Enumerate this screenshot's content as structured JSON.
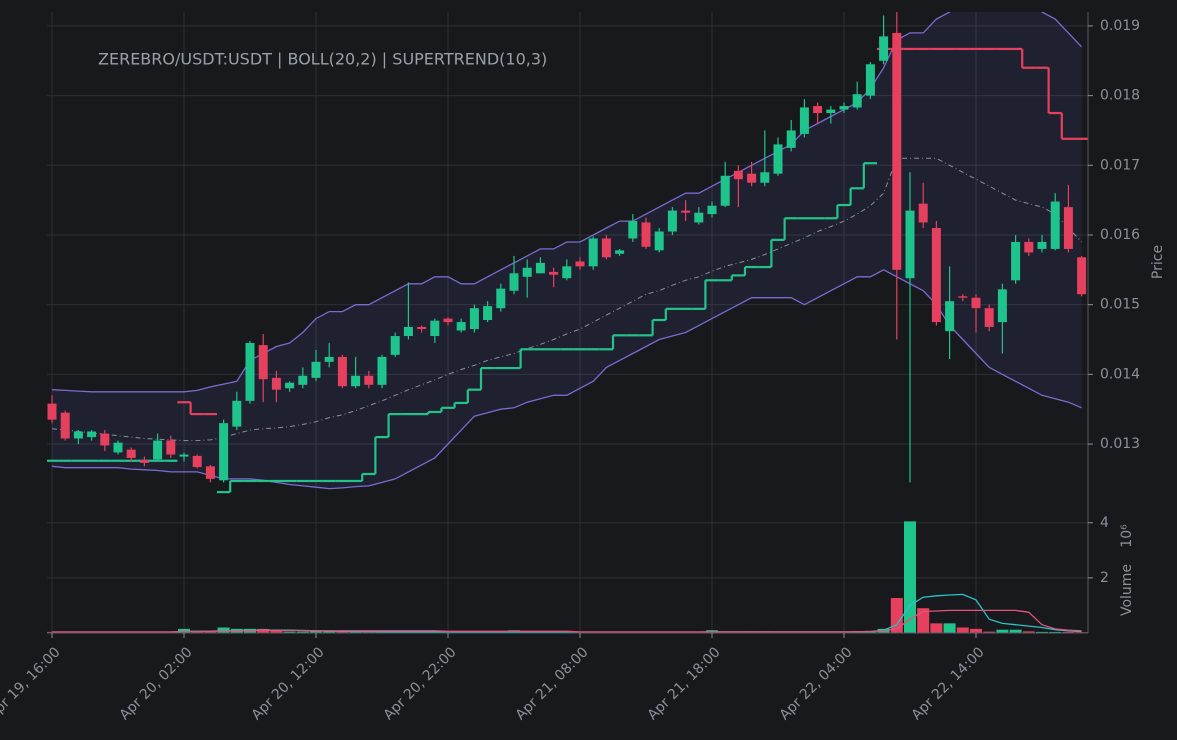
{
  "chart_data": [
    {
      "type": "candlestick",
      "title": "ZEREBRO/USDT:USDT | BOLL(20,2) | SUPERTREND(10,3)",
      "ylabel": "Price",
      "categories": [
        "Apr 19, 16:00",
        null,
        null,
        null,
        null,
        null,
        null,
        null,
        null,
        null,
        "Apr 20, 02:00",
        null,
        null,
        null,
        null,
        null,
        null,
        null,
        null,
        null,
        "Apr 20, 12:00",
        null,
        null,
        null,
        null,
        null,
        null,
        null,
        null,
        null,
        "Apr 20, 22:00",
        null,
        null,
        null,
        null,
        null,
        null,
        null,
        null,
        null,
        "Apr 21, 08:00",
        null,
        null,
        null,
        null,
        null,
        null,
        null,
        null,
        null,
        "Apr 21, 18:00",
        null,
        null,
        null,
        null,
        null,
        null,
        null,
        null,
        null,
        "Apr 22, 04:00",
        null,
        null,
        null,
        null,
        null,
        null,
        null,
        null,
        null,
        "Apr 22, 14:00",
        null,
        null,
        null,
        null,
        null,
        null,
        null,
        null
      ],
      "open": [
        0.01358,
        0.01345,
        0.01308,
        0.0131,
        0.01315,
        0.01288,
        0.01292,
        0.01277,
        0.01278,
        0.01305,
        0.01282,
        0.01283,
        0.01268,
        0.01248,
        0.01325,
        0.01362,
        0.01442,
        0.01395,
        0.0138,
        0.01385,
        0.01395,
        0.01418,
        0.01425,
        0.01383,
        0.01398,
        0.01385,
        0.01428,
        0.01455,
        0.01468,
        0.01455,
        0.0148,
        0.01463,
        0.01465,
        0.01478,
        0.01495,
        0.0152,
        0.0154,
        0.01545,
        0.01547,
        0.01538,
        0.01562,
        0.01555,
        0.01595,
        0.01573,
        0.01595,
        0.01618,
        0.01578,
        0.01605,
        0.01635,
        0.01618,
        0.0163,
        0.01642,
        0.01692,
        0.01688,
        0.01675,
        0.01688,
        0.01725,
        0.01745,
        0.01785,
        0.01775,
        0.0178,
        0.01783,
        0.018,
        0.0185,
        0.0189,
        0.01538,
        0.01645,
        0.0161,
        0.01462,
        0.01512,
        0.0151,
        0.01495,
        0.01475,
        0.01535,
        0.0159,
        0.0158,
        0.0158,
        0.0164,
        0.01568
      ],
      "high": [
        0.0137,
        0.01348,
        0.0132,
        0.0132,
        0.0132,
        0.01305,
        0.01295,
        0.01282,
        0.01315,
        0.01312,
        0.01288,
        0.01285,
        0.0127,
        0.01335,
        0.01375,
        0.01448,
        0.01458,
        0.01405,
        0.0139,
        0.0141,
        0.01435,
        0.01445,
        0.01428,
        0.01425,
        0.01405,
        0.01428,
        0.0146,
        0.01532,
        0.0147,
        0.0148,
        0.01482,
        0.0148,
        0.015,
        0.01505,
        0.0153,
        0.0157,
        0.01565,
        0.01568,
        0.01553,
        0.01565,
        0.01568,
        0.01598,
        0.016,
        0.0158,
        0.0163,
        0.01625,
        0.0161,
        0.0164,
        0.0165,
        0.0164,
        0.01648,
        0.01705,
        0.017,
        0.01705,
        0.0175,
        0.0174,
        0.01765,
        0.01795,
        0.0179,
        0.01785,
        0.0179,
        0.0182,
        0.01848,
        0.01915,
        0.0192,
        0.0169,
        0.01675,
        0.0162,
        0.01555,
        0.01515,
        0.01515,
        0.015,
        0.0153,
        0.016,
        0.01595,
        0.016,
        0.0166,
        0.01672,
        0.0157
      ],
      "low": [
        0.0133,
        0.01305,
        0.013,
        0.01305,
        0.0129,
        0.01285,
        0.01275,
        0.01268,
        0.01275,
        0.0128,
        0.01275,
        0.01265,
        0.01245,
        0.01245,
        0.0132,
        0.01358,
        0.0136,
        0.0136,
        0.01375,
        0.0138,
        0.0139,
        0.0141,
        0.0138,
        0.0138,
        0.0138,
        0.0138,
        0.01425,
        0.0145,
        0.0146,
        0.01445,
        0.0147,
        0.0146,
        0.0146,
        0.01475,
        0.0149,
        0.01515,
        0.0151,
        0.01545,
        0.01525,
        0.01535,
        0.0155,
        0.0155,
        0.01565,
        0.0157,
        0.0159,
        0.0158,
        0.01575,
        0.016,
        0.0162,
        0.01615,
        0.01625,
        0.0164,
        0.0164,
        0.0167,
        0.0167,
        0.01685,
        0.0172,
        0.0174,
        0.0176,
        0.0176,
        0.01775,
        0.0178,
        0.01795,
        0.01845,
        0.0145,
        0.01245,
        0.0161,
        0.0147,
        0.01422,
        0.01505,
        0.0146,
        0.01462,
        0.0143,
        0.0153,
        0.0157,
        0.01575,
        0.01578,
        0.01575,
        0.01512
      ],
      "close": [
        0.01335,
        0.01308,
        0.01318,
        0.01318,
        0.01298,
        0.01302,
        0.0128,
        0.01273,
        0.01305,
        0.01285,
        0.01285,
        0.01267,
        0.0125,
        0.0133,
        0.01362,
        0.01445,
        0.01393,
        0.01378,
        0.01388,
        0.01398,
        0.01418,
        0.01425,
        0.01383,
        0.01398,
        0.01385,
        0.01425,
        0.01455,
        0.01468,
        0.01465,
        0.01477,
        0.01475,
        0.01475,
        0.01495,
        0.01498,
        0.01523,
        0.01545,
        0.01553,
        0.0156,
        0.01543,
        0.01555,
        0.01555,
        0.01595,
        0.01568,
        0.01578,
        0.0162,
        0.01583,
        0.01605,
        0.01635,
        0.01632,
        0.01632,
        0.01642,
        0.01685,
        0.0168,
        0.01675,
        0.0169,
        0.0173,
        0.0175,
        0.01783,
        0.01775,
        0.0178,
        0.01785,
        0.01802,
        0.01845,
        0.01885,
        0.0155,
        0.01635,
        0.01618,
        0.01475,
        0.01505,
        0.0151,
        0.01495,
        0.01468,
        0.01522,
        0.0159,
        0.01575,
        0.0159,
        0.01648,
        0.0158,
        0.01515
      ],
      "up_color": "#1fc48d",
      "down_color": "#e5405e",
      "band_fill": "rgba(120,105,220,0.10)",
      "series": [
        {
          "style": "line",
          "color": "#7a6bd0",
          "values": [
            0.01378,
            0.01377,
            0.01376,
            0.01375,
            0.01375,
            0.01375,
            0.01375,
            0.01375,
            0.01375,
            0.01375,
            0.01375,
            0.01377,
            0.01382,
            0.01386,
            0.0139,
            0.0142,
            0.0143,
            0.0144,
            0.01445,
            0.0146,
            0.0148,
            0.0149,
            0.0149,
            0.015,
            0.015,
            0.0151,
            0.0152,
            0.0153,
            0.0153,
            0.0154,
            0.0154,
            0.0153,
            0.0153,
            0.0154,
            0.0155,
            0.0156,
            0.0157,
            0.0158,
            0.0158,
            0.0159,
            0.0159,
            0.016,
            0.0161,
            0.0162,
            0.0162,
            0.0163,
            0.0164,
            0.0165,
            0.0166,
            0.0166,
            0.0167,
            0.0168,
            0.0169,
            0.017,
            0.0171,
            0.0172,
            0.0173,
            0.0175,
            0.0176,
            0.0177,
            0.0178,
            0.0179,
            0.0181,
            0.0184,
            0.0188,
            0.0189,
            0.0189,
            0.0191,
            0.0192,
            0.0193,
            0.0193,
            0.0193,
            0.0193,
            0.0193,
            0.0193,
            0.0192,
            0.0191,
            0.0189,
            0.0187
          ]
        },
        {
          "style": "dashed",
          "color": "#8a8f99",
          "values": [
            0.01322,
            0.0132,
            0.01318,
            0.01316,
            0.01314,
            0.01312,
            0.0131,
            0.01308,
            0.01307,
            0.01306,
            0.01305,
            0.01305,
            0.01306,
            0.0131,
            0.01315,
            0.0132,
            0.01322,
            0.01323,
            0.01325,
            0.01328,
            0.01332,
            0.01338,
            0.01342,
            0.01348,
            0.01355,
            0.01362,
            0.0137,
            0.01378,
            0.01385,
            0.01392,
            0.014,
            0.01407,
            0.01413,
            0.0142,
            0.01425,
            0.0143,
            0.01437,
            0.01443,
            0.0145,
            0.01458,
            0.01465,
            0.01475,
            0.01485,
            0.01495,
            0.01505,
            0.01515,
            0.0152,
            0.01528,
            0.01535,
            0.0154,
            0.01548,
            0.01555,
            0.0156,
            0.01565,
            0.01572,
            0.0158,
            0.01588,
            0.01596,
            0.01605,
            0.01612,
            0.0162,
            0.0163,
            0.01642,
            0.0166,
            0.0171,
            0.0171,
            0.0171,
            0.0171,
            0.017,
            0.0169,
            0.0168,
            0.0167,
            0.0166,
            0.0165,
            0.01645,
            0.0164,
            0.0163,
            0.0161,
            0.0159
          ]
        },
        {
          "style": "line",
          "color": "#7a6bd0",
          "values": [
            0.01268,
            0.01266,
            0.01266,
            0.01266,
            0.01266,
            0.01266,
            0.01264,
            0.01263,
            0.01262,
            0.0126,
            0.0126,
            0.0126,
            0.01255,
            0.0125,
            0.0125,
            0.0125,
            0.01248,
            0.01245,
            0.01242,
            0.0124,
            0.01238,
            0.01236,
            0.01237,
            0.01239,
            0.0124,
            0.01245,
            0.0125,
            0.0126,
            0.0127,
            0.0128,
            0.013,
            0.0132,
            0.0134,
            0.01345,
            0.0135,
            0.01352,
            0.0136,
            0.01365,
            0.0137,
            0.0137,
            0.0138,
            0.0139,
            0.0141,
            0.0142,
            0.0143,
            0.0144,
            0.0145,
            0.01455,
            0.0146,
            0.0147,
            0.0148,
            0.0149,
            0.015,
            0.0151,
            0.0151,
            0.0151,
            0.0151,
            0.015,
            0.0151,
            0.0152,
            0.0153,
            0.0154,
            0.0154,
            0.0155,
            0.0154,
            0.0153,
            0.0152,
            0.015,
            0.0147,
            0.0145,
            0.0143,
            0.0141,
            0.014,
            0.0139,
            0.0138,
            0.0137,
            0.01365,
            0.0136,
            0.01352
          ]
        },
        {
          "style": "step",
          "color": "#22c48a",
          "values": [
            0.01276,
            0.01276,
            0.01276,
            0.01276,
            0.01276,
            0.01276,
            0.01276,
            0.01276,
            0.01276,
            0.01276,
            null,
            null,
            null,
            0.01231,
            0.01247,
            0.01247,
            0.01247,
            0.01247,
            0.01247,
            0.01247,
            0.01247,
            0.01247,
            0.01247,
            0.01247,
            0.01257,
            0.0131,
            0.01343,
            0.01343,
            0.01343,
            0.01346,
            0.01352,
            0.01359,
            0.01378,
            0.01409,
            0.01409,
            0.01409,
            0.01436,
            0.01436,
            0.01436,
            0.01436,
            0.01436,
            0.01436,
            0.01436,
            0.01456,
            0.01456,
            0.01456,
            0.01478,
            0.01494,
            0.01494,
            0.01494,
            0.01535,
            0.01535,
            0.01542,
            0.01554,
            0.01554,
            0.01593,
            0.01624,
            0.01624,
            0.01624,
            0.01624,
            0.01643,
            0.01667,
            0.01703,
            null,
            null,
            null,
            null,
            null,
            null,
            null,
            null,
            null,
            null,
            null,
            null,
            null,
            null,
            null,
            null
          ]
        },
        {
          "style": "step",
          "color": "#e5405e",
          "values": [
            null,
            null,
            null,
            null,
            null,
            null,
            null,
            null,
            null,
            null,
            0.0136,
            0.01343,
            0.01343,
            null,
            null,
            null,
            null,
            null,
            null,
            null,
            null,
            null,
            null,
            null,
            null,
            null,
            null,
            null,
            null,
            null,
            null,
            null,
            null,
            null,
            null,
            null,
            null,
            null,
            null,
            null,
            null,
            null,
            null,
            null,
            null,
            null,
            null,
            null,
            null,
            null,
            null,
            null,
            null,
            null,
            null,
            null,
            null,
            null,
            null,
            null,
            null,
            null,
            null,
            0.01867,
            0.01867,
            0.01867,
            0.01867,
            0.01867,
            0.01867,
            0.01867,
            0.01867,
            0.01867,
            0.01867,
            0.01867,
            0.0184,
            0.0184,
            0.01775,
            0.01738,
            0.01738
          ]
        }
      ],
      "ylim": [
        0.01191,
        0.0192
      ],
      "yticks": [
        0.013,
        0.014,
        0.015,
        0.016,
        0.017,
        0.018,
        0.019
      ],
      "grid": true
    },
    {
      "type": "bar",
      "ylabel": "Volume",
      "scale_label": "10⁶",
      "values": [
        0.04,
        0.03,
        0.02,
        0.02,
        0.02,
        0.02,
        0.02,
        0.02,
        0.03,
        0.02,
        0.15,
        0.05,
        0.04,
        0.2,
        0.15,
        0.15,
        0.15,
        0.1,
        0.05,
        0.05,
        0.08,
        0.08,
        0.08,
        0.06,
        0.04,
        0.04,
        0.03,
        0.03,
        0.02,
        0.02,
        0.02,
        0.02,
        0.02,
        0.02,
        0.02,
        0.1,
        0.02,
        0.02,
        0.02,
        0.02,
        0.05,
        0.03,
        0.02,
        0.02,
        0.02,
        0.02,
        0.02,
        0.02,
        0.03,
        0.03,
        0.1,
        0.03,
        0.05,
        0.06,
        0.06,
        0.04,
        0.04,
        0.03,
        0.03,
        0.03,
        0.04,
        0.06,
        0.08,
        0.15,
        1.27,
        4.05,
        0.9,
        0.35,
        0.35,
        0.2,
        0.15,
        0.05,
        0.12,
        0.12,
        0.06,
        0.04,
        0.04,
        0.04,
        0.03
      ],
      "series": [
        {
          "color": "#2bc3c9",
          "values": [
            0.03,
            0.03,
            0.03,
            0.03,
            0.03,
            0.03,
            0.03,
            0.03,
            0.03,
            0.03,
            0.06,
            0.06,
            0.07,
            0.08,
            0.09,
            0.1,
            0.1,
            0.1,
            0.1,
            0.09,
            0.08,
            0.07,
            0.06,
            0.05,
            0.05,
            0.04,
            0.04,
            0.04,
            0.04,
            0.04,
            0.03,
            0.03,
            0.03,
            0.03,
            0.03,
            0.03,
            0.03,
            0.03,
            0.03,
            0.03,
            0.03,
            0.03,
            0.03,
            0.03,
            0.03,
            0.03,
            0.03,
            0.03,
            0.03,
            0.03,
            0.04,
            0.04,
            0.04,
            0.04,
            0.04,
            0.04,
            0.04,
            0.04,
            0.04,
            0.04,
            0.04,
            0.04,
            0.05,
            0.1,
            0.3,
            1.0,
            1.3,
            1.35,
            1.38,
            1.4,
            1.2,
            0.5,
            0.35,
            0.3,
            0.25,
            0.2,
            0.12,
            0.08,
            0.05
          ]
        },
        {
          "color": "#e0557a",
          "values": [
            0.04,
            0.04,
            0.04,
            0.04,
            0.04,
            0.04,
            0.04,
            0.04,
            0.04,
            0.04,
            0.05,
            0.05,
            0.06,
            0.07,
            0.08,
            0.08,
            0.09,
            0.09,
            0.09,
            0.09,
            0.08,
            0.08,
            0.08,
            0.08,
            0.08,
            0.08,
            0.08,
            0.08,
            0.08,
            0.08,
            0.06,
            0.06,
            0.06,
            0.06,
            0.06,
            0.06,
            0.06,
            0.06,
            0.06,
            0.06,
            0.04,
            0.04,
            0.04,
            0.04,
            0.04,
            0.04,
            0.04,
            0.04,
            0.04,
            0.04,
            0.04,
            0.04,
            0.04,
            0.04,
            0.04,
            0.04,
            0.04,
            0.04,
            0.04,
            0.04,
            0.04,
            0.05,
            0.05,
            0.08,
            0.15,
            0.5,
            0.78,
            0.8,
            0.82,
            0.82,
            0.82,
            0.82,
            0.82,
            0.82,
            0.75,
            0.3,
            0.15,
            0.1,
            0.08
          ]
        }
      ],
      "ylim": [
        0,
        4.1
      ],
      "yticks": [
        2,
        4
      ],
      "grid": true
    }
  ]
}
